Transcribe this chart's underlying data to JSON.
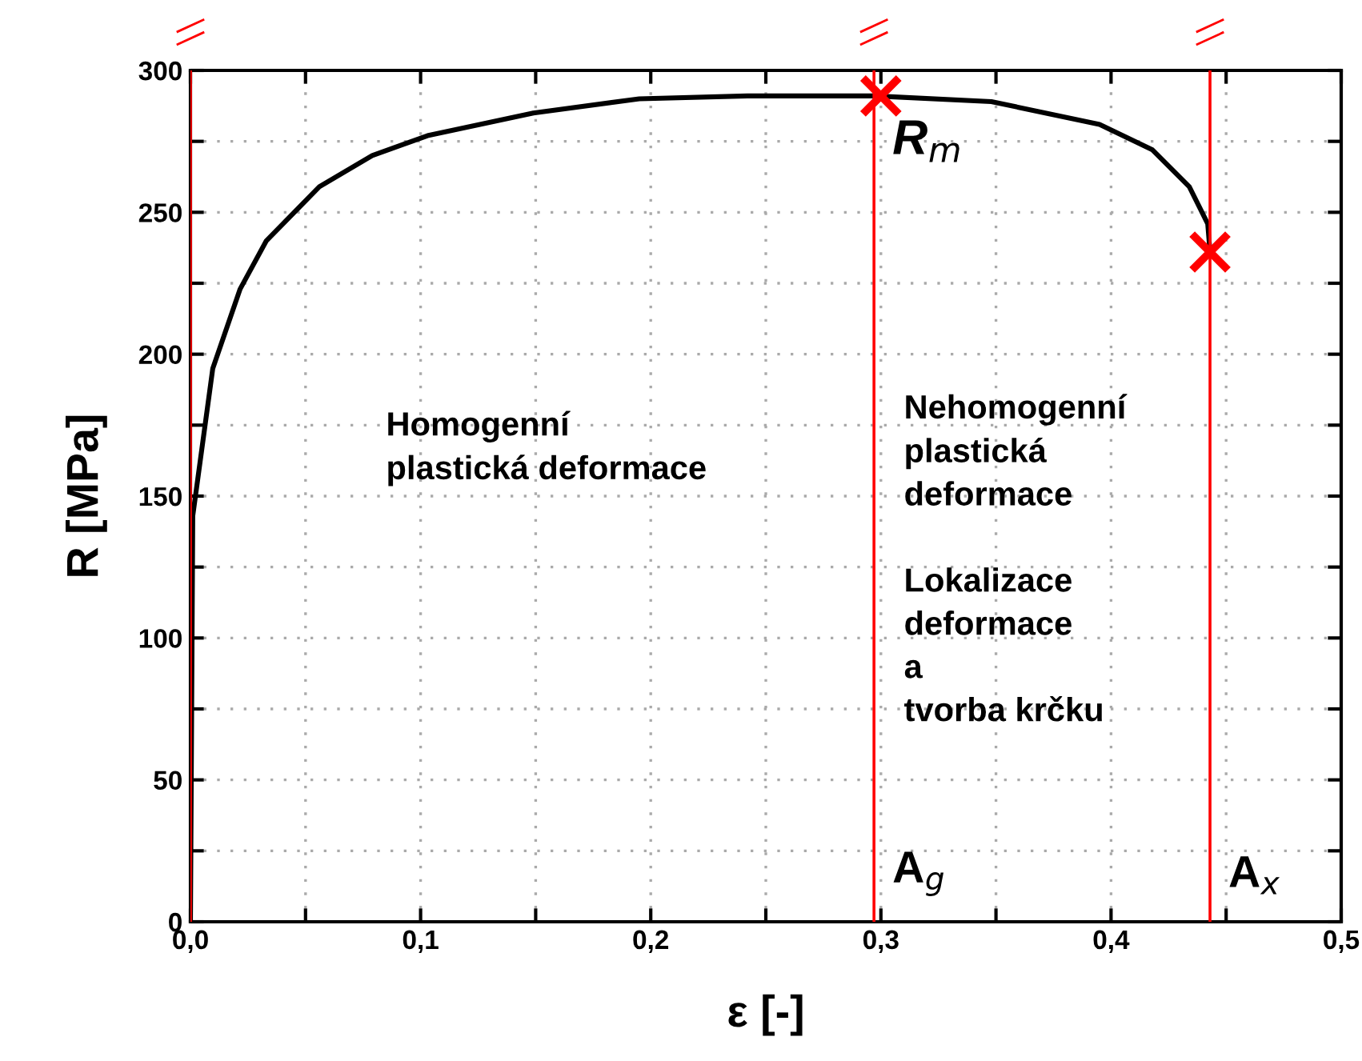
{
  "chart_data": {
    "type": "line",
    "xlabel": "ε [-]",
    "ylabel": "R [MPa]",
    "xlim": [
      0,
      0.5
    ],
    "ylim": [
      0,
      300
    ],
    "xticks": [
      {
        "value": 0,
        "label": "0,0"
      },
      {
        "value": 0.05,
        "label": null
      },
      {
        "value": 0.1,
        "label": "0,1"
      },
      {
        "value": 0.15,
        "label": null
      },
      {
        "value": 0.2,
        "label": "0,2"
      },
      {
        "value": 0.25,
        "label": null
      },
      {
        "value": 0.3,
        "label": "0,3"
      },
      {
        "value": 0.35,
        "label": null
      },
      {
        "value": 0.4,
        "label": "0,4"
      },
      {
        "value": 0.45,
        "label": null
      },
      {
        "value": 0.5,
        "label": "0,5"
      }
    ],
    "yticks": [
      0,
      {
        "value": 25,
        "label": null
      },
      50,
      {
        "value": 75,
        "label": null
      },
      100,
      {
        "value": 125,
        "label": null
      },
      150,
      {
        "value": 175,
        "label": null
      },
      200,
      {
        "value": 225,
        "label": null
      },
      250,
      {
        "value": 275,
        "label": null
      },
      300
    ],
    "grid": true,
    "legend": false,
    "series": [
      {
        "color": "#000000",
        "marker": "none",
        "line_style": "solid",
        "x": [
          0,
          0.001,
          0.0097,
          0.0216,
          0.033,
          0.056,
          0.079,
          0.103,
          0.149,
          0.195,
          0.242,
          0.297,
          0.348,
          0.395,
          0.418,
          0.434,
          0.442,
          0.443
        ],
        "values": [
          0,
          143,
          195,
          223,
          240,
          259,
          270,
          277,
          285,
          290,
          291,
          291,
          289,
          281,
          272,
          259,
          246,
          236
        ]
      },
      {
        "type": "scatter",
        "color": "#ff0000",
        "marker": "cross",
        "x": [
          0.3,
          0.443
        ],
        "values": [
          291,
          236
        ]
      }
    ],
    "ref_lines": [
      {
        "axis": "x",
        "value": 0,
        "color": "#ff0000"
      },
      {
        "axis": "x",
        "value": 0.297,
        "label": "A$_{g}$",
        "color": "#ff0000"
      },
      {
        "axis": "x",
        "value": 0.443,
        "label": "A$_{x}$",
        "color": "#ff0000"
      }
    ],
    "annotations": [
      {
        "text": "R$_{m}$",
        "x": 0.3,
        "y": 291
      },
      "Homogenní\nplastická deformace",
      "Nehomogenní\nplastická\ndeformace\n\nLokalizace\ndeformace\na\ntvorba krčku"
    ]
  }
}
